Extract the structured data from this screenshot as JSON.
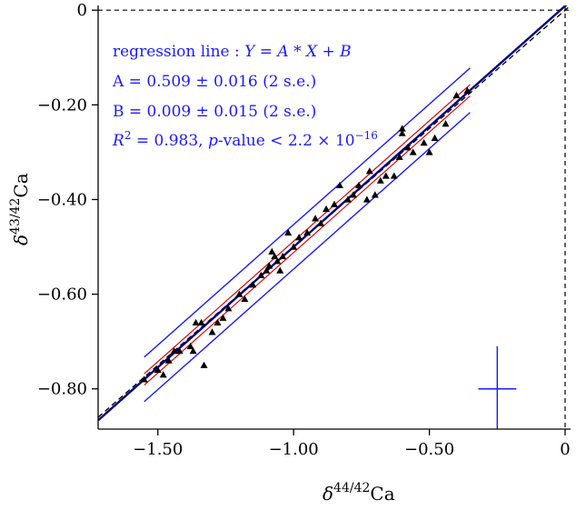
{
  "chart_data": {
    "type": "scatter",
    "title": "",
    "xlabel": {
      "base": "δ",
      "sup": "44/42",
      "tail": "Ca"
    },
    "ylabel": {
      "base": "δ",
      "sup": "43/42",
      "tail": "Ca"
    },
    "xlim": [
      -1.72,
      0.02
    ],
    "ylim": [
      -0.885,
      0.01
    ],
    "x_ticks": [
      -1.5,
      -1.0,
      -0.5,
      0
    ],
    "x_tick_labels": [
      "−1.50",
      "−1.00",
      "−0.50",
      "0"
    ],
    "y_ticks": [
      0,
      -0.2,
      -0.4,
      -0.6,
      -0.8
    ],
    "y_tick_labels": [
      "0",
      "−0.20",
      "−0.40",
      "−0.60",
      "−0.80"
    ],
    "grid": false,
    "reference_lines": {
      "x_zero_dashed": true,
      "y_zero_dashed": true
    },
    "equilibrium_line": {
      "slope": 0.5,
      "intercept": 0,
      "style": "dashed black"
    },
    "regression": {
      "slope": 0.509,
      "intercept": 0.009,
      "color": "#000080",
      "confidence_band_color": "#e00000",
      "prediction_band_offset": 0.047,
      "fit_x_range": [
        -1.55,
        -0.35
      ]
    },
    "annotation": {
      "line1": {
        "text": "regression line : ",
        "eq": "Y = A * X + B"
      },
      "line2": "A = 0.509 ± 0.016 (2 s.e.)",
      "line3": "B = 0.009 ± 0.015 (2 s.e.)",
      "line4": {
        "r2": "R",
        "r2_sup": "2",
        "r2_val": " = 0.983, ",
        "p": "p",
        "pval": "-value < 2.2 × 10",
        "pexp": "−16"
      }
    },
    "error_cross": {
      "x": -0.25,
      "y": -0.8,
      "half_width_x": 0.07,
      "half_height_y": 0.09
    },
    "series": [
      {
        "marker": "triangle",
        "color": "#000000",
        "points": [
          [
            -1.55,
            -0.78
          ],
          [
            -1.5,
            -0.76
          ],
          [
            -1.48,
            -0.77
          ],
          [
            -1.46,
            -0.74
          ],
          [
            -1.44,
            -0.72
          ],
          [
            -1.42,
            -0.72
          ],
          [
            -1.38,
            -0.71
          ],
          [
            -1.37,
            -0.72
          ],
          [
            -1.36,
            -0.66
          ],
          [
            -1.34,
            -0.66
          ],
          [
            -1.33,
            -0.75
          ],
          [
            -1.3,
            -0.68
          ],
          [
            -1.28,
            -0.66
          ],
          [
            -1.26,
            -0.65
          ],
          [
            -1.24,
            -0.63
          ],
          [
            -1.2,
            -0.6
          ],
          [
            -1.18,
            -0.61
          ],
          [
            -1.15,
            -0.58
          ],
          [
            -1.12,
            -0.56
          ],
          [
            -1.1,
            -0.55
          ],
          [
            -1.09,
            -0.54
          ],
          [
            -1.08,
            -0.51
          ],
          [
            -1.07,
            -0.52
          ],
          [
            -1.06,
            -0.53
          ],
          [
            -1.05,
            -0.55
          ],
          [
            -1.04,
            -0.52
          ],
          [
            -1.02,
            -0.47
          ],
          [
            -1.0,
            -0.5
          ],
          [
            -0.98,
            -0.48
          ],
          [
            -0.95,
            -0.47
          ],
          [
            -0.92,
            -0.44
          ],
          [
            -0.9,
            -0.45
          ],
          [
            -0.88,
            -0.42
          ],
          [
            -0.85,
            -0.41
          ],
          [
            -0.83,
            -0.37
          ],
          [
            -0.8,
            -0.4
          ],
          [
            -0.78,
            -0.39
          ],
          [
            -0.76,
            -0.37
          ],
          [
            -0.73,
            -0.4
          ],
          [
            -0.72,
            -0.34
          ],
          [
            -0.7,
            -0.39
          ],
          [
            -0.68,
            -0.36
          ],
          [
            -0.66,
            -0.35
          ],
          [
            -0.63,
            -0.35
          ],
          [
            -0.61,
            -0.31
          ],
          [
            -0.6,
            -0.26
          ],
          [
            -0.58,
            -0.29
          ],
          [
            -0.56,
            -0.3
          ],
          [
            -0.52,
            -0.28
          ],
          [
            -0.5,
            -0.3
          ],
          [
            -0.48,
            -0.27
          ],
          [
            -0.44,
            -0.24
          ],
          [
            -0.4,
            -0.18
          ],
          [
            -0.36,
            -0.17
          ],
          [
            -0.6,
            -0.25
          ]
        ]
      }
    ]
  }
}
